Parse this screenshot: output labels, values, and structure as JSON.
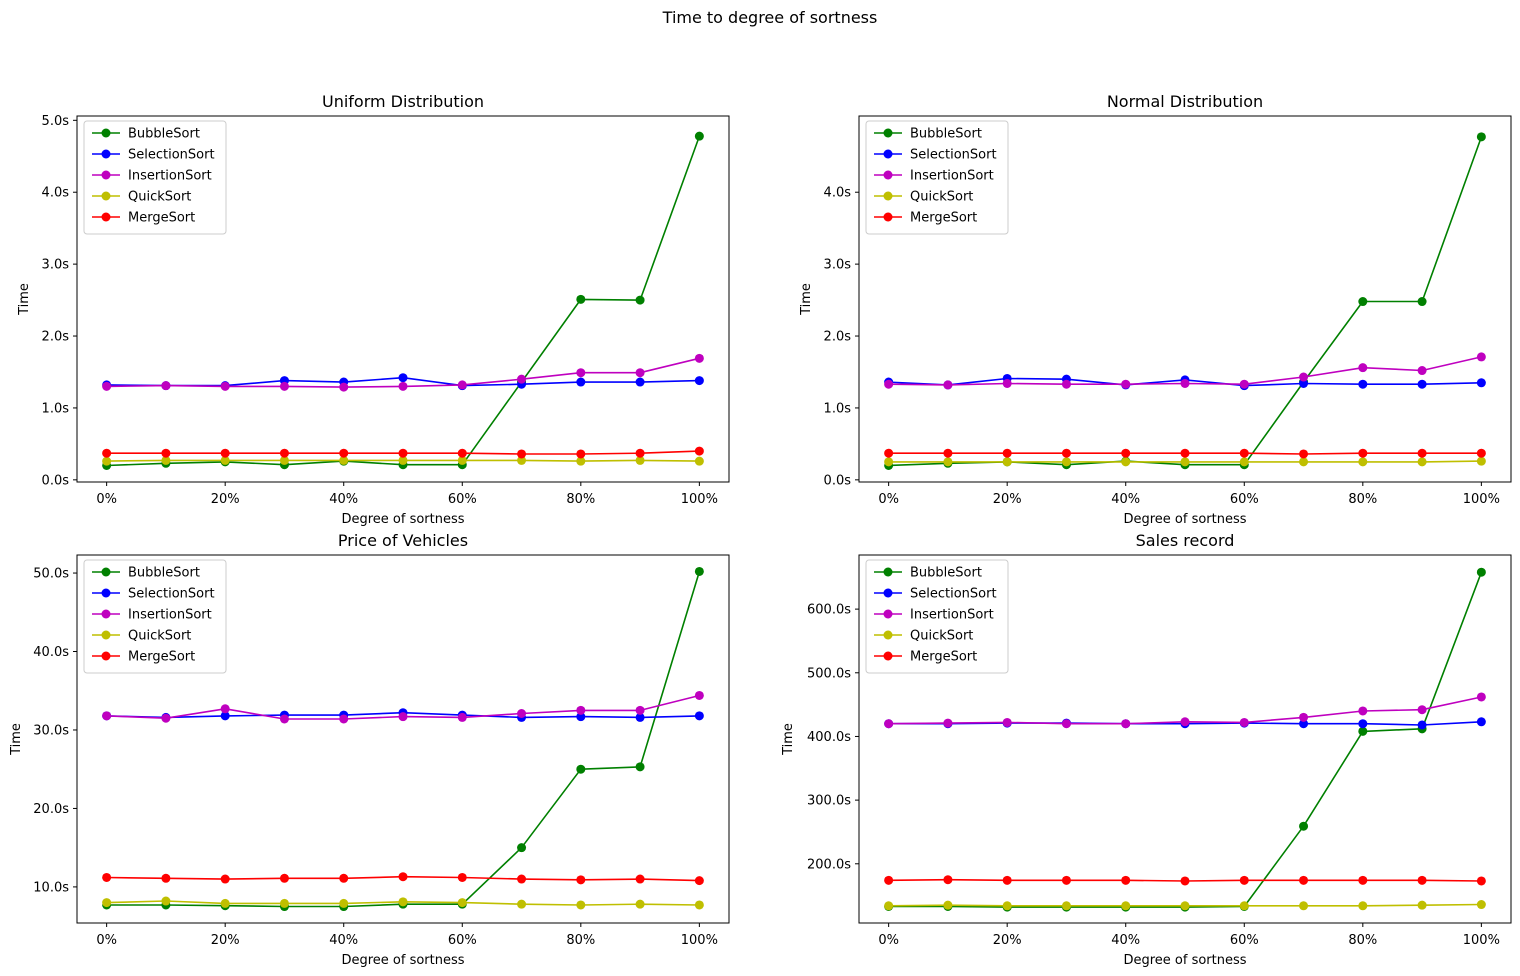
{
  "figure": {
    "title": "Time to degree of sortness"
  },
  "chart_data": [
    {
      "type": "line",
      "title": "Uniform Distribution",
      "xlabel": "Degree of sortness",
      "ylabel": "Time",
      "x": [
        0,
        10,
        20,
        30,
        40,
        50,
        60,
        70,
        80,
        90,
        100
      ],
      "x_tick_values": [
        0,
        20,
        40,
        60,
        80,
        100
      ],
      "x_tick_labels": [
        "0%",
        "20%",
        "40%",
        "60%",
        "80%",
        "100%"
      ],
      "xlim": [
        -5,
        105
      ],
      "y_tick_values": [
        0,
        1,
        2,
        3,
        4,
        5
      ],
      "y_tick_labels": [
        "0.0s",
        "1.0s",
        "2.0s",
        "3.0s",
        "4.0s",
        "5.0s"
      ],
      "ylim": [
        -0.03,
        5.06
      ],
      "grid": false,
      "legend": "upper-left",
      "series": [
        {
          "name": "BubbleSort",
          "color": "#008000",
          "values": [
            0.2,
            0.23,
            0.25,
            0.21,
            0.26,
            0.21,
            0.21,
            1.36,
            2.51,
            2.5,
            4.78
          ]
        },
        {
          "name": "SelectionSort",
          "color": "#0000ff",
          "values": [
            1.32,
            1.31,
            1.31,
            1.38,
            1.36,
            1.42,
            1.31,
            1.33,
            1.36,
            1.36,
            1.38
          ]
        },
        {
          "name": "InsertionSort",
          "color": "#bf00bf",
          "values": [
            1.3,
            1.31,
            1.3,
            1.3,
            1.29,
            1.3,
            1.32,
            1.4,
            1.49,
            1.49,
            1.69
          ]
        },
        {
          "name": "QuickSort",
          "color": "#bfbf00",
          "values": [
            0.26,
            0.27,
            0.27,
            0.27,
            0.27,
            0.27,
            0.27,
            0.27,
            0.26,
            0.27,
            0.26
          ]
        },
        {
          "name": "MergeSort",
          "color": "#ff0000",
          "values": [
            0.37,
            0.37,
            0.37,
            0.37,
            0.37,
            0.37,
            0.37,
            0.36,
            0.36,
            0.37,
            0.4
          ]
        }
      ]
    },
    {
      "type": "line",
      "title": "Normal Distribution",
      "xlabel": "Degree of sortness",
      "ylabel": "Time",
      "x": [
        0,
        10,
        20,
        30,
        40,
        50,
        60,
        70,
        80,
        90,
        100
      ],
      "x_tick_values": [
        0,
        20,
        40,
        60,
        80,
        100
      ],
      "x_tick_labels": [
        "0%",
        "20%",
        "40%",
        "60%",
        "80%",
        "100%"
      ],
      "xlim": [
        -5,
        105
      ],
      "y_tick_values": [
        0,
        1,
        2,
        3,
        4
      ],
      "y_tick_labels": [
        "0.0s",
        "1.0s",
        "2.0s",
        "3.0s",
        "4.0s"
      ],
      "ylim": [
        -0.03,
        5.06
      ],
      "grid": false,
      "legend": "upper-left",
      "series": [
        {
          "name": "BubbleSort",
          "color": "#008000",
          "values": [
            0.2,
            0.23,
            0.25,
            0.21,
            0.26,
            0.21,
            0.21,
            1.36,
            2.48,
            2.48,
            4.77
          ]
        },
        {
          "name": "SelectionSort",
          "color": "#0000ff",
          "values": [
            1.36,
            1.32,
            1.41,
            1.4,
            1.32,
            1.39,
            1.31,
            1.34,
            1.33,
            1.33,
            1.35
          ]
        },
        {
          "name": "InsertionSort",
          "color": "#bf00bf",
          "values": [
            1.33,
            1.32,
            1.34,
            1.33,
            1.33,
            1.34,
            1.33,
            1.43,
            1.56,
            1.52,
            1.71
          ]
        },
        {
          "name": "QuickSort",
          "color": "#bfbf00",
          "values": [
            0.25,
            0.25,
            0.25,
            0.25,
            0.25,
            0.25,
            0.25,
            0.25,
            0.25,
            0.25,
            0.26
          ]
        },
        {
          "name": "MergeSort",
          "color": "#ff0000",
          "values": [
            0.37,
            0.37,
            0.37,
            0.37,
            0.37,
            0.37,
            0.37,
            0.36,
            0.37,
            0.37,
            0.37
          ]
        }
      ]
    },
    {
      "type": "line",
      "title": "Price of Vehicles",
      "xlabel": "Degree of sortness",
      "ylabel": "Time",
      "x": [
        0,
        10,
        20,
        30,
        40,
        50,
        60,
        70,
        80,
        90,
        100
      ],
      "x_tick_values": [
        0,
        20,
        40,
        60,
        80,
        100
      ],
      "x_tick_labels": [
        "0%",
        "20%",
        "40%",
        "60%",
        "80%",
        "100%"
      ],
      "xlim": [
        -5,
        105
      ],
      "y_tick_values": [
        10,
        20,
        30,
        40,
        50
      ],
      "y_tick_labels": [
        "10.0s",
        "20.0s",
        "30.0s",
        "40.0s",
        "50.0s"
      ],
      "ylim": [
        5.4,
        52.3
      ],
      "grid": false,
      "legend": "upper-left",
      "series": [
        {
          "name": "BubbleSort",
          "color": "#008000",
          "values": [
            7.7,
            7.7,
            7.6,
            7.5,
            7.5,
            7.8,
            7.8,
            15.0,
            25.0,
            25.3,
            50.2
          ]
        },
        {
          "name": "SelectionSort",
          "color": "#0000ff",
          "values": [
            31.8,
            31.6,
            31.8,
            31.9,
            31.9,
            32.2,
            31.9,
            31.6,
            31.7,
            31.6,
            31.8
          ]
        },
        {
          "name": "InsertionSort",
          "color": "#bf00bf",
          "values": [
            31.8,
            31.5,
            32.7,
            31.4,
            31.4,
            31.7,
            31.6,
            32.1,
            32.5,
            32.5,
            34.4
          ]
        },
        {
          "name": "QuickSort",
          "color": "#bfbf00",
          "values": [
            8.0,
            8.2,
            7.9,
            7.9,
            7.9,
            8.1,
            8.0,
            7.8,
            7.7,
            7.8,
            7.7
          ]
        },
        {
          "name": "MergeSort",
          "color": "#ff0000",
          "values": [
            11.2,
            11.1,
            11.0,
            11.1,
            11.1,
            11.3,
            11.2,
            11.0,
            10.9,
            11.0,
            10.8
          ]
        }
      ]
    },
    {
      "type": "line",
      "title": "Sales record",
      "xlabel": "Degree of sortness",
      "ylabel": "Time",
      "x": [
        0,
        10,
        20,
        30,
        40,
        50,
        60,
        70,
        80,
        90,
        100
      ],
      "x_tick_values": [
        0,
        20,
        40,
        60,
        80,
        100
      ],
      "x_tick_labels": [
        "0%",
        "20%",
        "40%",
        "60%",
        "80%",
        "100%"
      ],
      "xlim": [
        -5,
        105
      ],
      "y_tick_values": [
        200,
        300,
        400,
        500,
        600
      ],
      "y_tick_labels": [
        "200.0s",
        "300.0s",
        "400.0s",
        "500.0s",
        "600.0s"
      ],
      "ylim": [
        107,
        685
      ],
      "grid": false,
      "legend": "upper-left",
      "series": [
        {
          "name": "BubbleSort",
          "color": "#008000",
          "values": [
            133,
            133,
            132,
            132,
            132,
            132,
            133,
            259,
            408,
            412,
            658
          ]
        },
        {
          "name": "SelectionSort",
          "color": "#0000ff",
          "values": [
            420,
            420,
            421,
            421,
            420,
            420,
            421,
            420,
            420,
            418,
            423
          ]
        },
        {
          "name": "InsertionSort",
          "color": "#bf00bf",
          "values": [
            420,
            421,
            422,
            420,
            420,
            423,
            422,
            430,
            440,
            442,
            462
          ]
        },
        {
          "name": "QuickSort",
          "color": "#bfbf00",
          "values": [
            134,
            135,
            134,
            134,
            134,
            134,
            134,
            134,
            134,
            135,
            136
          ]
        },
        {
          "name": "MergeSort",
          "color": "#ff0000",
          "values": [
            174,
            175,
            174,
            174,
            174,
            173,
            174,
            174,
            174,
            174,
            173
          ]
        }
      ]
    }
  ]
}
